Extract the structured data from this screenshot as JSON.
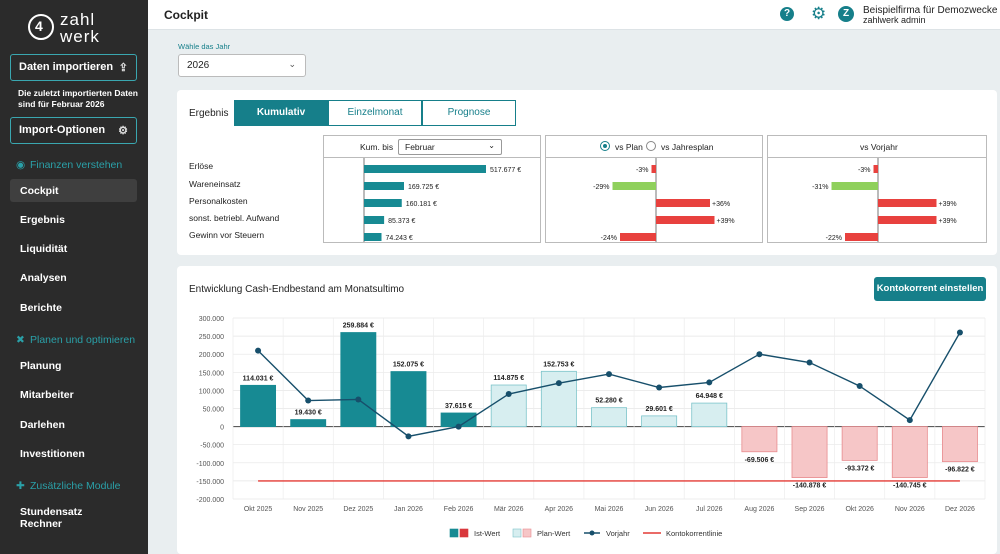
{
  "sidebar": {
    "logo_top": "zahl",
    "logo_bottom": "werk",
    "import_button": "Daten importieren",
    "import_note": "Die zuletzt importierten Daten sind für Februar 2026",
    "import_options": "Import-Optionen",
    "sections": [
      {
        "label": "Finanzen verstehen",
        "icon": "eye-icon"
      },
      {
        "label": "Planen und optimieren",
        "icon": "tools-icon"
      },
      {
        "label": "Zusätzliche Module",
        "icon": "puzzle-icon"
      }
    ],
    "items": [
      "Cockpit",
      "Ergebnis",
      "Liquidität",
      "Analysen",
      "Berichte",
      "Planung",
      "Mitarbeiter",
      "Darlehen",
      "Investitionen",
      "Stundensatz Rechner"
    ],
    "active_item": "Cockpit"
  },
  "topbar": {
    "title": "Cockpit",
    "help_icon": "?",
    "avatar_letter": "Z",
    "company": "Beispielfirma für Demozwecke",
    "user": "zahlwerk admin"
  },
  "year": {
    "label": "Wähle das Jahr",
    "value": "2026"
  },
  "ergebnis": {
    "label": "Ergebnis",
    "tabs": [
      "Kumulativ",
      "Einzelmonat",
      "Prognose"
    ],
    "active_tab": "Kumulativ",
    "kum_label": "Kum. bis",
    "kum_value": "Februar",
    "plan_options": [
      "vs Plan",
      "vs Jahresplan"
    ],
    "vorjahr_label": "vs Vorjahr",
    "rows": [
      "Erlöse",
      "Wareneinsatz",
      "Personalkosten",
      "sonst. betriebl. Aufwand",
      "Gewinn vor Steuern"
    ],
    "values": [
      517677,
      169725,
      160181,
      85373,
      74243
    ],
    "value_labels": [
      "517.677 €",
      "169.725 €",
      "160.181 €",
      "85.373 €",
      "74.243 €"
    ],
    "vs_plan": [
      -3,
      -29,
      36,
      39,
      -24
    ],
    "vs_plan_labels": [
      "-3%",
      "-29%",
      "+36%",
      "+39%",
      "-24%"
    ],
    "vs_plan_colors": [
      "#e8413e",
      "#8fd05c",
      "#e8413e",
      "#e8413e",
      "#e8413e"
    ],
    "vs_vorjahr": [
      -3,
      -31,
      39,
      39,
      -22
    ],
    "vs_vorjahr_labels": [
      "-3%",
      "-31%",
      "+39%",
      "+39%",
      "-22%"
    ],
    "vs_vorjahr_colors": [
      "#e8413e",
      "#8fd05c",
      "#e8413e",
      "#e8413e",
      "#e8413e"
    ]
  },
  "cash": {
    "title": "Entwicklung Cash-Endbestand am Monatsultimo",
    "button": "Kontokorrent einstellen"
  },
  "chart_data": {
    "type": "bar",
    "categories": [
      "Okt 2025",
      "Nov 2025",
      "Dez 2025",
      "Jan 2026",
      "Feb 2026",
      "Mär 2026",
      "Apr 2026",
      "Mai 2026",
      "Jun 2026",
      "Jul 2026",
      "Aug 2026",
      "Sep 2026",
      "Okt 2026",
      "Nov 2026",
      "Dez 2026"
    ],
    "series": [
      {
        "name": "Ist-Wert",
        "values": [
          114031,
          19430,
          259884,
          152075,
          37615,
          null,
          null,
          null,
          null,
          null,
          null,
          null,
          null,
          null,
          null
        ],
        "colors": {
          "positive": "#178a93",
          "negative": "#d9373c"
        }
      },
      {
        "name": "Plan-Wert",
        "values": [
          null,
          null,
          null,
          null,
          null,
          114875,
          152753,
          52280,
          29601,
          64948,
          -69506,
          -140878,
          -93372,
          -140745,
          -96822
        ],
        "colors": {
          "positive": "#d7eef0",
          "negative": "#f6c6c7"
        }
      },
      {
        "name": "Vorjahr",
        "values": [
          210000,
          72000,
          75000,
          -27000,
          0,
          90000,
          120000,
          145000,
          108000,
          122000,
          200000,
          177000,
          112000,
          18000,
          260000
        ],
        "color": "#174f6b"
      },
      {
        "name": "Kontokorrentlinie",
        "values": [
          -150000,
          -150000,
          -150000,
          -150000,
          -150000,
          -150000,
          -150000,
          -150000,
          -150000,
          -150000,
          -150000,
          -150000,
          -150000,
          -150000,
          -150000
        ],
        "color": "#e33a35"
      }
    ],
    "data_labels": [
      "114.031 €",
      "19.430 €",
      "259.884 €",
      "152.075 €",
      "37.615 €",
      "114.875 €",
      "152.753 €",
      "52.280 €",
      "29.601 €",
      "64.948 €",
      "-69.506 €",
      "-140.878 €",
      "-93.372 €",
      "-140.745 €",
      "-96.822 €"
    ],
    "y_ticks": [
      "300.000",
      "250.000",
      "200.000",
      "150.000",
      "100.000",
      "50.000",
      "0",
      "-50.000",
      "-100.000",
      "-150.000",
      "-200.000"
    ],
    "ylim": [
      -200000,
      300000
    ],
    "grid": true,
    "legend_position": "bottom"
  }
}
